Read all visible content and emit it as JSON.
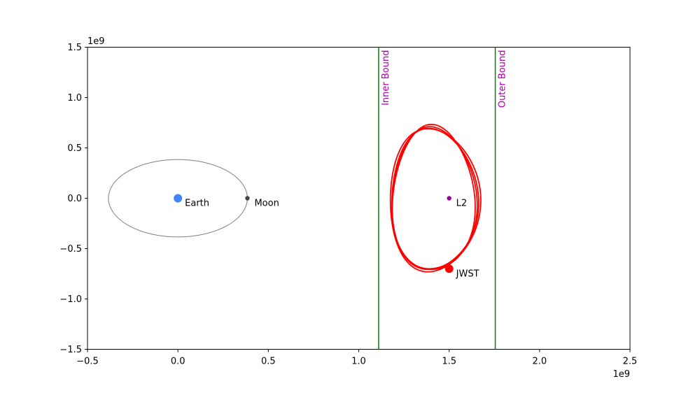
{
  "chart_data": {
    "type": "scatter",
    "title": "",
    "xlabel": "",
    "ylabel": "",
    "xlim": [
      -500000000,
      2500000000
    ],
    "ylim": [
      -1500000000,
      1500000000
    ],
    "x_offset_label": "1e9",
    "y_offset_label": "1e9",
    "x_ticks": [
      -0.5,
      0.0,
      0.5,
      1.0,
      1.5,
      2.0,
      2.5
    ],
    "x_tick_labels": [
      "−0.5",
      "0.0",
      "0.5",
      "1.0",
      "1.5",
      "2.0",
      "2.5"
    ],
    "y_ticks": [
      -1.5,
      -1.0,
      -0.5,
      0.0,
      0.5,
      1.0,
      1.5
    ],
    "y_tick_labels": [
      "−1.5",
      "−1.0",
      "−0.5",
      "0.0",
      "0.5",
      "1.0",
      "1.5"
    ],
    "grid": false,
    "moon_orbit": {
      "center": [
        0,
        0
      ],
      "radius": 384400000,
      "color": "#808080"
    },
    "points": [
      {
        "name": "Earth",
        "label": "Earth",
        "x": 0,
        "y": 0,
        "color": "#4285f4",
        "size": "large"
      },
      {
        "name": "Moon",
        "label": "Moon",
        "x": 384400000,
        "y": 0,
        "color": "#444444",
        "size": "small"
      },
      {
        "name": "L2",
        "label": "L2",
        "x": 1500000000,
        "y": 0,
        "color": "#990099",
        "size": "small"
      },
      {
        "name": "JWST",
        "label": "JWST",
        "x": 1500000000,
        "y": -700000000,
        "color": "#ff0000",
        "size": "large"
      }
    ],
    "vertical_lines": [
      {
        "name": "inner-bound",
        "label": "Inner Bound",
        "x": 1110000000,
        "color": "#008000",
        "label_color": "#aa00aa"
      },
      {
        "name": "outer-bound",
        "label": "Outer Bound",
        "x": 1755000000,
        "color": "#008000",
        "label_color": "#aa00aa"
      }
    ],
    "orbit": {
      "name": "JWST halo orbit",
      "color": "#ff0000",
      "center_x": 1410000000,
      "center_y": -20000000,
      "loops": [
        {
          "a": 250000000,
          "b": 710000000,
          "phase": 0.0
        },
        {
          "a": 240000000,
          "b": 700000000,
          "phase": 0.4
        },
        {
          "a": 235000000,
          "b": 705000000,
          "phase": 0.8
        },
        {
          "a": 228000000,
          "b": 720000000,
          "phase": 1.2
        }
      ]
    }
  }
}
